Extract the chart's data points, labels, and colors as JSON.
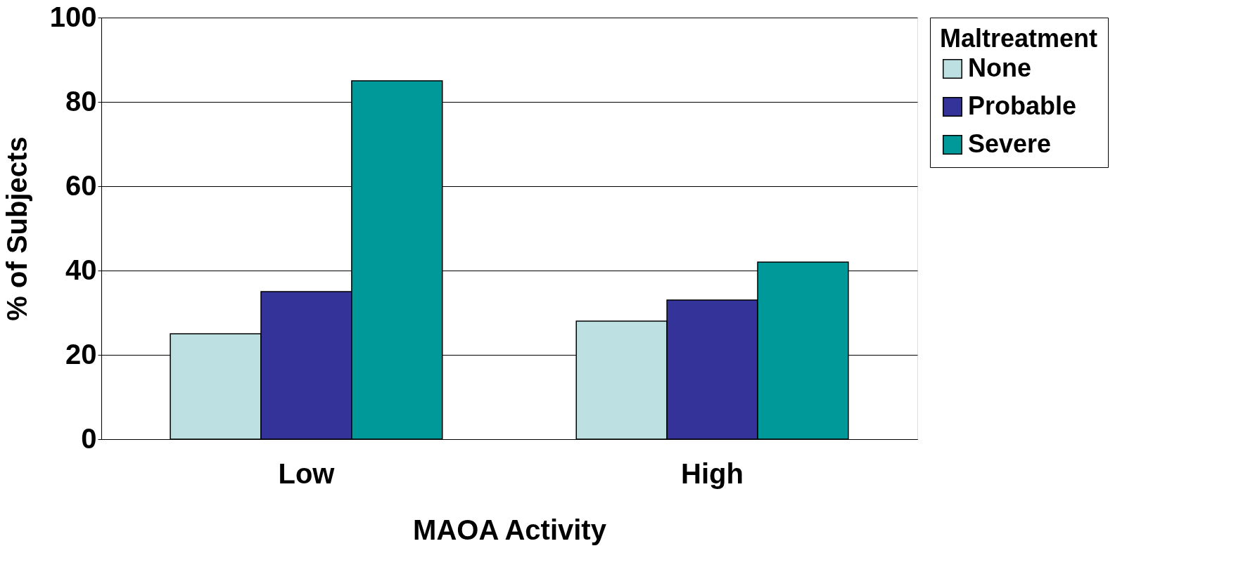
{
  "chart_data": {
    "type": "bar",
    "xlabel": "MAOA Activity",
    "ylabel": "% of Subjects",
    "legend_title": "Maltreatment",
    "categories": [
      "Low",
      "High"
    ],
    "series": [
      {
        "name": "None",
        "color": "#bde1e3",
        "values": [
          25,
          28
        ]
      },
      {
        "name": "Probable",
        "color": "#333399",
        "values": [
          35,
          33
        ]
      },
      {
        "name": "Severe",
        "color": "#009999",
        "values": [
          85,
          42
        ]
      }
    ],
    "ylim": [
      0,
      100
    ],
    "yticks": [
      0,
      20,
      40,
      60,
      80,
      100
    ],
    "grid": "y",
    "legend": "right"
  }
}
